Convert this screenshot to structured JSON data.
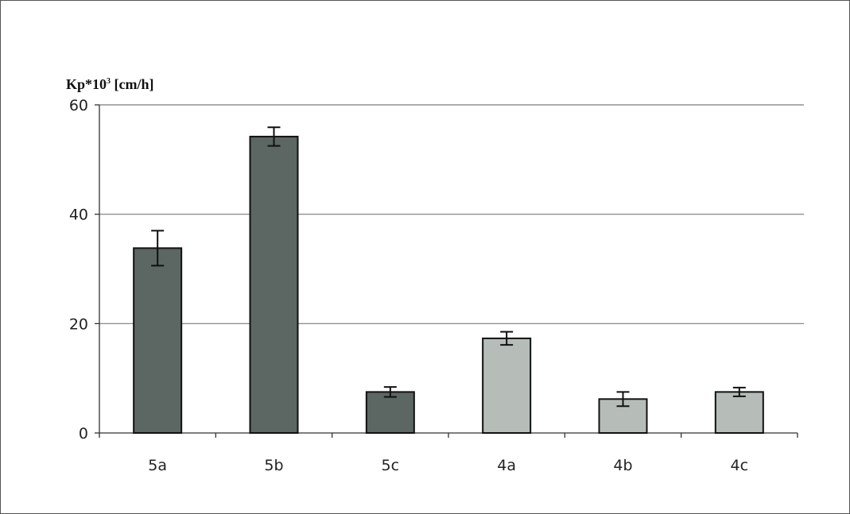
{
  "chart_data": {
    "type": "bar",
    "ylabel_main": "Kp*10",
    "ylabel_sup": "3",
    "ylabel_unit": " [cm/h]",
    "categories": [
      "5a",
      "5b",
      "5c",
      "4a",
      "4b",
      "4c"
    ],
    "values": [
      33.8,
      54.2,
      7.5,
      17.3,
      6.2,
      7.5
    ],
    "errors": [
      3.2,
      1.7,
      0.9,
      1.2,
      1.3,
      0.8
    ],
    "ylim": [
      0,
      60
    ],
    "yticks": [
      0,
      20,
      40,
      60
    ],
    "grid": true,
    "bar_colors": [
      "#5c6663",
      "#5c6663",
      "#5c6663",
      "#b6bdb8",
      "#b6bdb8",
      "#b6bdb8"
    ]
  }
}
